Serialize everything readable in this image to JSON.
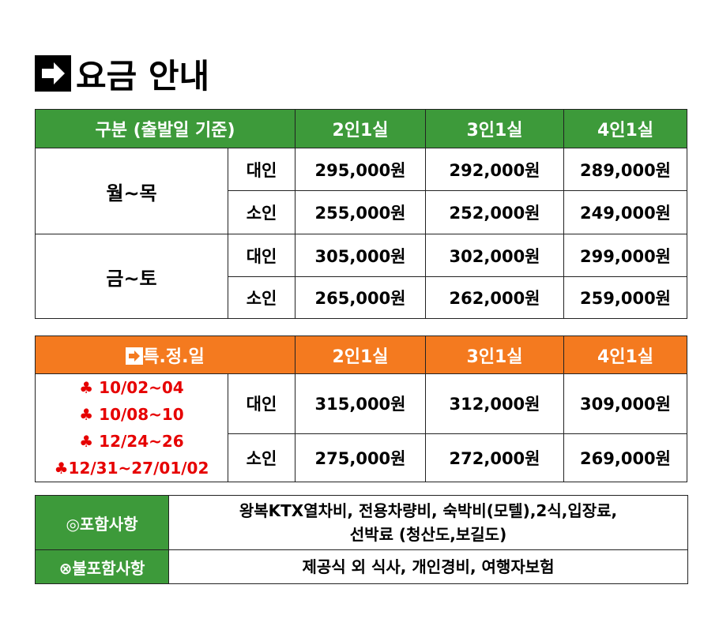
{
  "header": {
    "title": "요금 안내"
  },
  "regular": {
    "headers": [
      "구분 (출발일 기준)",
      "2인1실",
      "3인1실",
      "4인1실"
    ],
    "groups": [
      {
        "label": "월~목",
        "rows": [
          {
            "type": "대인",
            "prices": [
              "295,000원",
              "292,000원",
              "289,000원"
            ]
          },
          {
            "type": "소인",
            "prices": [
              "255,000원",
              "252,000원",
              "249,000원"
            ]
          }
        ]
      },
      {
        "label": "금~토",
        "rows": [
          {
            "type": "대인",
            "prices": [
              "305,000원",
              "302,000원",
              "299,000원"
            ]
          },
          {
            "type": "소인",
            "prices": [
              "265,000원",
              "262,000원",
              "259,000원"
            ]
          }
        ]
      }
    ]
  },
  "special": {
    "headers": [
      "특.정.일",
      "2인1실",
      "3인1실",
      "4인1실"
    ],
    "dates": [
      "♣ 10/02~04",
      "♣ 10/08~10",
      "♣ 12/24~26",
      "♣12/31~27/01/02"
    ],
    "rows": [
      {
        "type": "대인",
        "prices": [
          "315,000원",
          "312,000원",
          "309,000원"
        ]
      },
      {
        "type": "소인",
        "prices": [
          "275,000원",
          "272,000원",
          "269,000원"
        ]
      }
    ]
  },
  "notes": [
    {
      "label": "◎포함사항",
      "lines": [
        "왕복KTX열차비, 전용차량비, 숙박비(모텔),2식,입장료,",
        "선박료 (청산도,보길도)"
      ]
    },
    {
      "label": "⊗불포함사항",
      "lines": [
        "제공식 외 식사, 개인경비, 여행자보험"
      ]
    }
  ]
}
